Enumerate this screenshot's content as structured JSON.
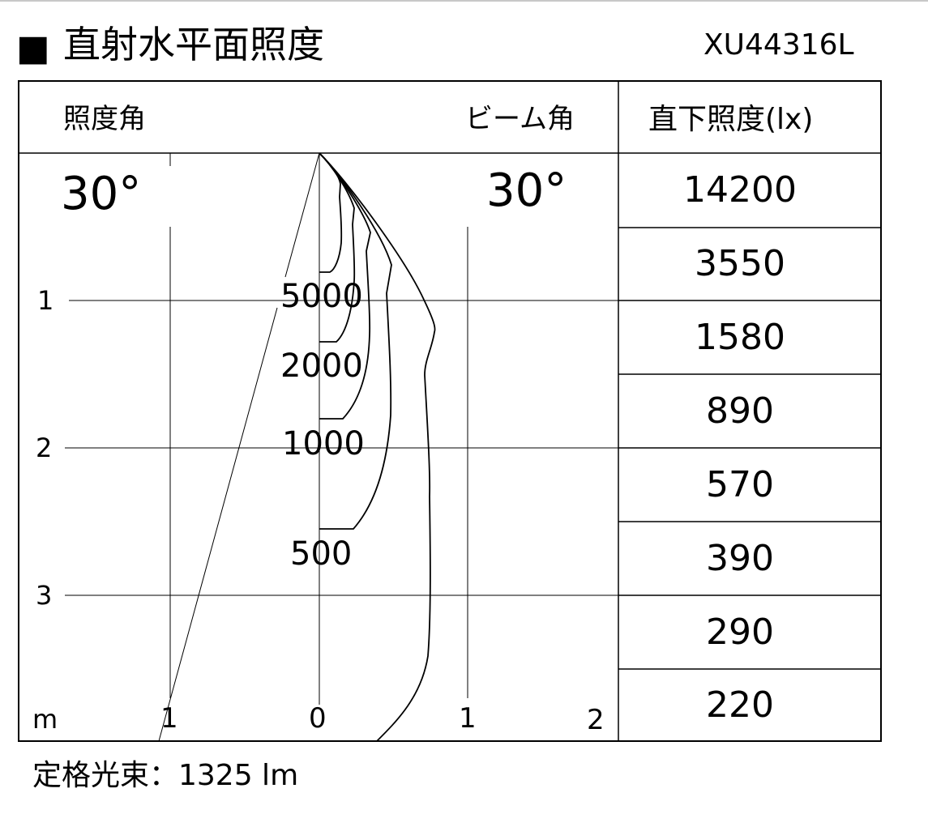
{
  "header": {
    "title_marker": "■",
    "title": "直射水平面照度",
    "model": "XU44316L"
  },
  "diagram": {
    "illuminance_angle_label": "照度角",
    "illuminance_angle_value": "30°",
    "beam_angle_label": "ビーム角",
    "beam_angle_value": "30°",
    "y_ticks": [
      "1",
      "2",
      "3"
    ],
    "x_unit": "m",
    "x_ticks": [
      "1",
      "0",
      "1",
      "2"
    ],
    "contour_labels": [
      "5000",
      "2000",
      "1000",
      "500"
    ]
  },
  "table": {
    "header": "直下照度(lx)",
    "values": [
      "14200",
      "3550",
      "1580",
      "890",
      "570",
      "390",
      "290",
      "220"
    ]
  },
  "footer": {
    "rated_flux": "定格光束：1325 lm"
  }
}
